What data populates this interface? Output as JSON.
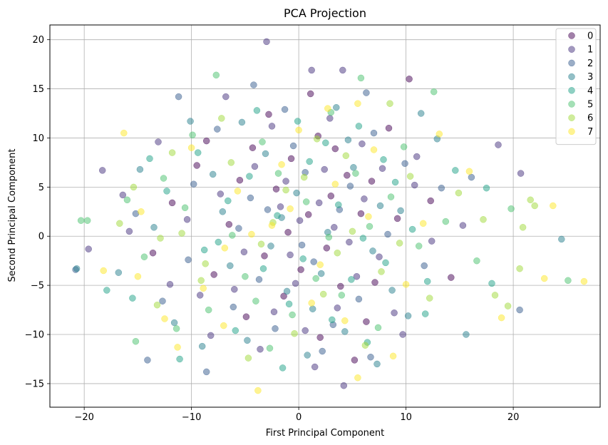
{
  "chart_data": {
    "type": "scatter",
    "title": "PCA Projection",
    "xlabel": "First Principal Component",
    "ylabel": "Second Principal Component",
    "xlim": [
      -23.2,
      28.1
    ],
    "ylim": [
      -17.4,
      21.5
    ],
    "xticks": [
      -20,
      -10,
      0,
      10,
      20
    ],
    "yticks": [
      -15,
      -10,
      -5,
      0,
      5,
      10,
      15,
      20
    ],
    "grid": true,
    "legend_position": "top-right",
    "marker_alpha": 0.5,
    "series": [
      {
        "name": "0",
        "color": "#440154",
        "points": [
          [
            -2.1,
            4.8
          ],
          [
            3.4,
            8.9
          ],
          [
            -6.5,
            1.2
          ],
          [
            0.2,
            -3.4
          ],
          [
            5.8,
            2.3
          ],
          [
            -1.4,
            -6.1
          ],
          [
            10.3,
            16.0
          ],
          [
            -9.5,
            7.2
          ],
          [
            2.6,
            -1.2
          ],
          [
            -4.3,
            9.0
          ],
          [
            7.1,
            -4.7
          ],
          [
            1.1,
            14.5
          ],
          [
            -11.8,
            3.4
          ],
          [
            4.5,
            6.2
          ],
          [
            -3.2,
            -2.0
          ],
          [
            9.2,
            1.8
          ],
          [
            -0.7,
            7.9
          ],
          [
            6.3,
            -8.7
          ],
          [
            -7.9,
            -3.9
          ],
          [
            12.3,
            3.6
          ],
          [
            2.0,
            -10.3
          ],
          [
            -5.5,
            5.7
          ],
          [
            0.9,
            2.2
          ],
          [
            3.9,
            -5.1
          ],
          [
            -2.8,
            12.4
          ],
          [
            8.4,
            11.0
          ],
          [
            -13.6,
            -1.7
          ],
          [
            5.2,
            -12.6
          ],
          [
            -1.0,
            0.4
          ],
          [
            1.8,
            10.2
          ],
          [
            -8.6,
            9.7
          ],
          [
            14.2,
            -4.2
          ],
          [
            3.0,
            4.1
          ],
          [
            -4.9,
            -8.2
          ],
          [
            6.8,
            5.6
          ]
        ]
      },
      {
        "name": "1",
        "color": "#46327e",
        "points": [
          [
            -3.0,
            19.8
          ],
          [
            1.2,
            16.9
          ],
          [
            4.1,
            16.9
          ],
          [
            -15.8,
            0.5
          ],
          [
            -6.8,
            14.2
          ],
          [
            0.6,
            -9.6
          ],
          [
            -9.2,
            -6.0
          ],
          [
            7.5,
            -2.1
          ],
          [
            -1.7,
            3.0
          ],
          [
            3.3,
            0.9
          ],
          [
            -12.0,
            -4.9
          ],
          [
            10.8,
            5.2
          ],
          [
            -5.1,
            -1.6
          ],
          [
            2.4,
            6.8
          ],
          [
            -0.3,
            -4.8
          ],
          [
            5.9,
            9.4
          ],
          [
            -7.3,
            4.3
          ],
          [
            8.9,
            -7.8
          ],
          [
            -2.5,
            11.2
          ],
          [
            1.5,
            -13.3
          ],
          [
            18.6,
            9.3
          ],
          [
            -10.4,
            1.7
          ],
          [
            4.7,
            -0.6
          ],
          [
            -4.1,
            7.1
          ],
          [
            6.1,
            3.8
          ],
          [
            -8.2,
            -10.1
          ],
          [
            0.1,
            1.6
          ],
          [
            12.4,
            -0.5
          ],
          [
            -16.4,
            4.2
          ],
          [
            3.6,
            -7.3
          ],
          [
            -1.2,
            5.6
          ],
          [
            9.7,
            -10.0
          ],
          [
            -6.0,
            -5.4
          ],
          [
            2.9,
            12.0
          ],
          [
            -3.6,
            -11.5
          ],
          [
            11.0,
            8.1
          ],
          [
            -18.3,
            6.7
          ],
          [
            4.2,
            -15.2
          ],
          [
            7.8,
            6.9
          ],
          [
            -0.8,
            -1.9
          ],
          [
            20.7,
            6.4
          ],
          [
            -13.1,
            9.6
          ],
          [
            1.9,
            3.4
          ],
          [
            5.4,
            -4.1
          ],
          [
            -2.3,
            -7.7
          ],
          [
            -19.6,
            -1.3
          ],
          [
            15.3,
            1.1
          ]
        ]
      },
      {
        "name": "2",
        "color": "#365c8d",
        "points": [
          [
            -11.2,
            14.2
          ],
          [
            -4.2,
            15.4
          ],
          [
            6.3,
            14.6
          ],
          [
            -8.6,
            -13.8
          ],
          [
            -20.8,
            -3.4
          ],
          [
            -14.1,
            -12.6
          ],
          [
            20.6,
            -7.5
          ],
          [
            -2.9,
            2.7
          ],
          [
            1.4,
            -2.6
          ],
          [
            4.8,
            5.1
          ],
          [
            -6.1,
            -7.2
          ],
          [
            8.3,
            0.2
          ],
          [
            -0.5,
            9.2
          ],
          [
            3.2,
            -9.0
          ],
          [
            -9.8,
            5.3
          ],
          [
            11.7,
            -3.0
          ],
          [
            -3.7,
            -4.4
          ],
          [
            0.6,
            6.5
          ],
          [
            7.0,
            10.5
          ],
          [
            -5.6,
            0.8
          ],
          [
            2.2,
            -11.7
          ],
          [
            -12.7,
            -6.6
          ],
          [
            9.9,
            7.4
          ],
          [
            -1.3,
            12.9
          ],
          [
            5.6,
            -6.4
          ],
          [
            -7.6,
            10.9
          ],
          [
            13.3,
            4.9
          ],
          [
            -15.2,
            2.3
          ],
          [
            0.3,
            -0.9
          ],
          [
            3.8,
            2.7
          ],
          [
            -2.2,
            -9.4
          ],
          [
            16.1,
            6.0
          ],
          [
            -10.3,
            -2.4
          ],
          [
            6.7,
            -12.3
          ],
          [
            -4.5,
            3.9
          ]
        ]
      },
      {
        "name": "3",
        "color": "#277f8e",
        "points": [
          [
            -10.1,
            11.7
          ],
          [
            -3.1,
            8.4
          ],
          [
            2.7,
            0.4
          ],
          [
            -6.4,
            -3.0
          ],
          [
            7.6,
            3.1
          ],
          [
            -1.1,
            -5.6
          ],
          [
            4.6,
            9.8
          ],
          [
            -13.5,
            0.9
          ],
          [
            10.2,
            -8.1
          ],
          [
            -8.0,
            6.3
          ],
          [
            1.3,
            -7.4
          ],
          [
            -4.8,
            -10.6
          ],
          [
            6.9,
            -1.5
          ],
          [
            -0.2,
            4.4
          ],
          [
            12.9,
            9.9
          ],
          [
            -11.6,
            -8.8
          ],
          [
            3.5,
            13.1
          ],
          [
            -2.6,
            -1.0
          ],
          [
            8.7,
            -5.5
          ],
          [
            -7.1,
            2.5
          ],
          [
            0.8,
            -12.1
          ],
          [
            15.6,
            -10.0
          ],
          [
            -16.8,
            -3.7
          ],
          [
            5.1,
            7.0
          ],
          [
            -5.3,
            11.6
          ],
          [
            9.5,
            2.6
          ],
          [
            -1.6,
            1.9
          ],
          [
            2.1,
            -3.8
          ],
          [
            11.4,
            12.5
          ],
          [
            -9.0,
            -11.2
          ],
          [
            4.3,
            -9.7
          ],
          [
            -14.8,
            6.8
          ],
          [
            24.5,
            -0.3
          ],
          [
            -20.7,
            -3.3
          ],
          [
            7.3,
            -13.0
          ]
        ]
      },
      {
        "name": "4",
        "color": "#1fa187",
        "points": [
          [
            -3.9,
            12.8
          ],
          [
            5.6,
            11.2
          ],
          [
            -7.5,
            -0.6
          ],
          [
            1.0,
            7.6
          ],
          [
            -0.9,
            -6.9
          ],
          [
            8.1,
            -2.7
          ],
          [
            -12.3,
            4.6
          ],
          [
            3.7,
            3.2
          ],
          [
            -5.9,
            -9.6
          ],
          [
            10.6,
            0.7
          ],
          [
            -2.0,
            2.1
          ],
          [
            6.4,
            -10.8
          ],
          [
            -9.4,
            8.5
          ],
          [
            0.4,
            -2.3
          ],
          [
            14.6,
            6.7
          ],
          [
            -15.5,
            -6.3
          ],
          [
            4.9,
            -4.4
          ],
          [
            -4.6,
            6.1
          ],
          [
            12.0,
            -4.6
          ],
          [
            -11.1,
            -12.5
          ],
          [
            2.5,
            9.5
          ],
          [
            -8.8,
            -1.4
          ],
          [
            7.9,
            7.8
          ],
          [
            -1.5,
            -13.4
          ],
          [
            17.5,
            4.9
          ],
          [
            -6.6,
            3.6
          ],
          [
            3.1,
            -8.5
          ],
          [
            -13.9,
            7.9
          ],
          [
            9.0,
            5.5
          ],
          [
            -0.1,
            11.7
          ],
          [
            18.0,
            -4.8
          ],
          [
            -17.9,
            -5.5
          ],
          [
            6.0,
            -0.2
          ],
          [
            -3.3,
            -3.3
          ],
          [
            11.8,
            -7.9
          ]
        ]
      },
      {
        "name": "5",
        "color": "#4ac16d",
        "points": [
          [
            -7.7,
            16.4
          ],
          [
            5.8,
            16.1
          ],
          [
            -20.3,
            1.6
          ],
          [
            -19.7,
            1.6
          ],
          [
            -15.2,
            -10.7
          ],
          [
            25.1,
            -4.5
          ],
          [
            -1.9,
            6.4
          ],
          [
            2.8,
            -0.1
          ],
          [
            -5.0,
            -4.1
          ],
          [
            8.6,
            4.0
          ],
          [
            -10.6,
            2.9
          ],
          [
            4.0,
            -6.0
          ],
          [
            -3.4,
            9.6
          ],
          [
            11.2,
            -1.0
          ],
          [
            -8.4,
            -7.5
          ],
          [
            0.7,
            3.5
          ],
          [
            7.4,
            -9.3
          ],
          [
            -12.6,
            5.9
          ],
          [
            13.7,
            1.5
          ],
          [
            -2.7,
            -11.4
          ],
          [
            9.8,
            9.1
          ],
          [
            -6.2,
            0.1
          ],
          [
            1.6,
            -4.3
          ],
          [
            -14.4,
            -2.1
          ],
          [
            5.3,
            6.4
          ],
          [
            -0.6,
            -8.0
          ],
          [
            16.6,
            -2.5
          ],
          [
            -9.9,
            10.3
          ],
          [
            3.0,
            12.6
          ],
          [
            -4.0,
            -6.6
          ],
          [
            12.6,
            14.7
          ],
          [
            -16.0,
            3.7
          ],
          [
            6.6,
            1.0
          ],
          [
            -11.4,
            -9.4
          ],
          [
            19.8,
            2.8
          ]
        ]
      },
      {
        "name": "6",
        "color": "#a0da39",
        "points": [
          [
            -16.7,
            1.3
          ],
          [
            -11.8,
            8.5
          ],
          [
            21.6,
            3.7
          ],
          [
            22.0,
            3.1
          ],
          [
            20.9,
            0.9
          ],
          [
            19.5,
            -7.1
          ],
          [
            -1.2,
            4.7
          ],
          [
            3.6,
            -1.7
          ],
          [
            -6.3,
            7.5
          ],
          [
            7.7,
            -3.6
          ],
          [
            -9.1,
            -4.5
          ],
          [
            1.7,
            9.9
          ],
          [
            -3.5,
            -0.8
          ],
          [
            10.4,
            6.1
          ],
          [
            -13.2,
            -7.0
          ],
          [
            5.0,
            0.5
          ],
          [
            -0.4,
            -9.9
          ],
          [
            14.9,
            4.4
          ],
          [
            -7.2,
            12.0
          ],
          [
            2.3,
            -5.9
          ],
          [
            -10.9,
            0.3
          ],
          [
            8.5,
            13.5
          ],
          [
            -4.7,
            -12.4
          ],
          [
            12.2,
            -6.3
          ],
          [
            0.5,
            6.0
          ],
          [
            -15.4,
            5.0
          ],
          [
            6.2,
            -11.1
          ],
          [
            -2.4,
            1.4
          ],
          [
            17.2,
            1.7
          ],
          [
            -8.7,
            -2.8
          ],
          [
            4.4,
            8.2
          ],
          [
            18.3,
            -6.0
          ],
          [
            -12.9,
            -0.2
          ],
          [
            9.4,
            -0.7
          ],
          [
            20.6,
            -3.3
          ]
        ]
      },
      {
        "name": "7",
        "color": "#fde725",
        "points": [
          [
            -16.3,
            10.5
          ],
          [
            -3.8,
            -15.7
          ],
          [
            5.5,
            13.5
          ],
          [
            5.5,
            -14.4
          ],
          [
            26.6,
            -4.6
          ],
          [
            23.7,
            3.1
          ],
          [
            22.9,
            -4.3
          ],
          [
            -2.5,
            1.1
          ],
          [
            2.0,
            -2.9
          ],
          [
            -5.7,
            4.6
          ],
          [
            6.5,
            2.0
          ],
          [
            -8.9,
            -5.3
          ],
          [
            0.0,
            10.8
          ],
          [
            -11.3,
            -11.3
          ],
          [
            10.0,
            -4.9
          ],
          [
            -1.6,
            7.3
          ],
          [
            4.3,
            -8.6
          ],
          [
            -14.7,
            2.5
          ],
          [
            13.1,
            10.4
          ],
          [
            -7.0,
            -9.1
          ],
          [
            3.4,
            5.3
          ],
          [
            -18.2,
            -3.5
          ],
          [
            8.8,
            -12.2
          ],
          [
            -4.4,
            0.2
          ],
          [
            15.9,
            6.6
          ],
          [
            -10.0,
            9.0
          ],
          [
            1.2,
            -6.8
          ],
          [
            -0.8,
            2.8
          ],
          [
            11.6,
            1.3
          ],
          [
            -12.5,
            -8.4
          ],
          [
            7.0,
            8.8
          ],
          [
            -6.9,
            -1.2
          ],
          [
            18.9,
            -8.3
          ],
          [
            -15.0,
            -4.1
          ],
          [
            2.7,
            13.0
          ]
        ]
      }
    ]
  }
}
